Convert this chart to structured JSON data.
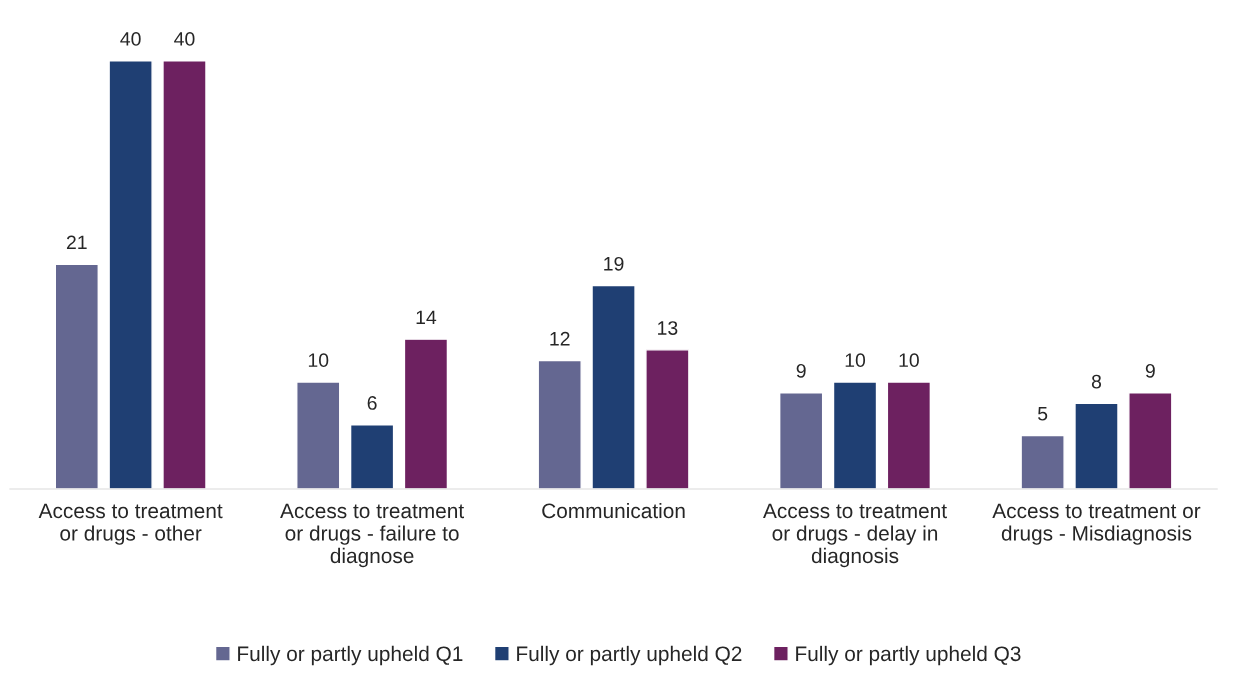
{
  "chart_data": {
    "type": "bar",
    "categories": [
      "Access to treatment\nor drugs - other",
      "Access to treatment\nor drugs - failure to\ndiagnose",
      "Communication",
      "Access to treatment\nor drugs - delay in\ndiagnosis",
      "Access to treatment or\ndrugs - Misdiagnosis"
    ],
    "series": [
      {
        "name": "Fully or partly upheld Q1",
        "color": "#646791",
        "values": [
          21,
          10,
          12,
          9,
          5
        ]
      },
      {
        "name": "Fully or partly upheld Q2",
        "color": "#1f3f73",
        "values": [
          40,
          6,
          19,
          10,
          8
        ]
      },
      {
        "name": "Fully or partly upheld Q3",
        "color": "#6d2160",
        "values": [
          40,
          14,
          13,
          10,
          9
        ]
      }
    ],
    "data_labels": true,
    "legend": "bottom",
    "grid": false
  }
}
